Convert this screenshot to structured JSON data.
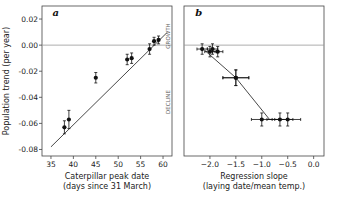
{
  "chart_data": [
    {
      "type": "scatter",
      "title": "a",
      "xlabel": "Caterpillar peak date\n(days since 31 March)",
      "ylabel": "Population trend (per year)",
      "annotations": [
        {
          "text": "DECLINE"
        },
        {
          "text": "GROWTH"
        }
      ],
      "series": [
        {
          "type": "scatter",
          "color": "#111111",
          "x": [
            38,
            39,
            45,
            52,
            53,
            57,
            58,
            59
          ],
          "values": [
            -0.063,
            -0.057,
            -0.025,
            -0.011,
            -0.01,
            -0.003,
            0.003,
            0.004
          ],
          "yerr": [
            0.005,
            0.007,
            0.004,
            0.004,
            0.004,
            0.004,
            0.003,
            0.003
          ]
        },
        {
          "type": "line",
          "color": "#333333",
          "x": [
            35,
            61
          ],
          "values": [
            -0.078,
            0.01
          ]
        }
      ],
      "hline_y": 0.0,
      "xlim": [
        33,
        62
      ],
      "xticks": [
        35,
        40,
        45,
        50,
        55,
        60
      ],
      "ylim": [
        -0.085,
        0.03
      ],
      "yticks": [
        -0.08,
        -0.06,
        -0.04,
        -0.02,
        {
          "value": 0,
          "label": "0.00"
        },
        0.02
      ]
    },
    {
      "type": "scatter",
      "title": "b",
      "xlabel": "Regression slope\n(laying date/mean temp.)",
      "tick_labels": "x",
      "series": [
        {
          "type": "scatter",
          "color": "#111111",
          "x": [
            -2.15,
            -2.0,
            -1.95,
            -1.85,
            -1.5,
            -1.5,
            -1.0,
            -0.65,
            -0.5
          ],
          "values": [
            -0.003,
            -0.005,
            -0.003,
            -0.005,
            -0.025,
            -0.025,
            -0.057,
            -0.057,
            -0.057
          ],
          "xerr": [
            0.1,
            0.1,
            0.1,
            0.1,
            0.25,
            0.25,
            0.2,
            0.25,
            0.25
          ],
          "yerr": [
            0.004,
            0.004,
            0.004,
            0.004,
            0.006,
            0.006,
            0.005,
            0.005,
            0.005
          ]
        },
        {
          "type": "line",
          "color": "#333333",
          "x": [
            -2.1,
            -1.5,
            -0.85,
            -0.575
          ],
          "values": [
            -0.004,
            -0.025,
            -0.057,
            -0.057
          ]
        }
      ],
      "hline_y": 0.0,
      "xlim": [
        -2.5,
        0.2
      ],
      "xticks": [
        {
          "value": -2,
          "label": "−2.0"
        },
        {
          "value": -1.5,
          "label": "−1.5"
        },
        {
          "value": -1,
          "label": "−1.0"
        },
        {
          "value": -0.5,
          "label": "−0.5"
        },
        {
          "value": 0,
          "label": "0.0"
        }
      ],
      "ylim": [
        -0.085,
        0.03
      ]
    }
  ]
}
